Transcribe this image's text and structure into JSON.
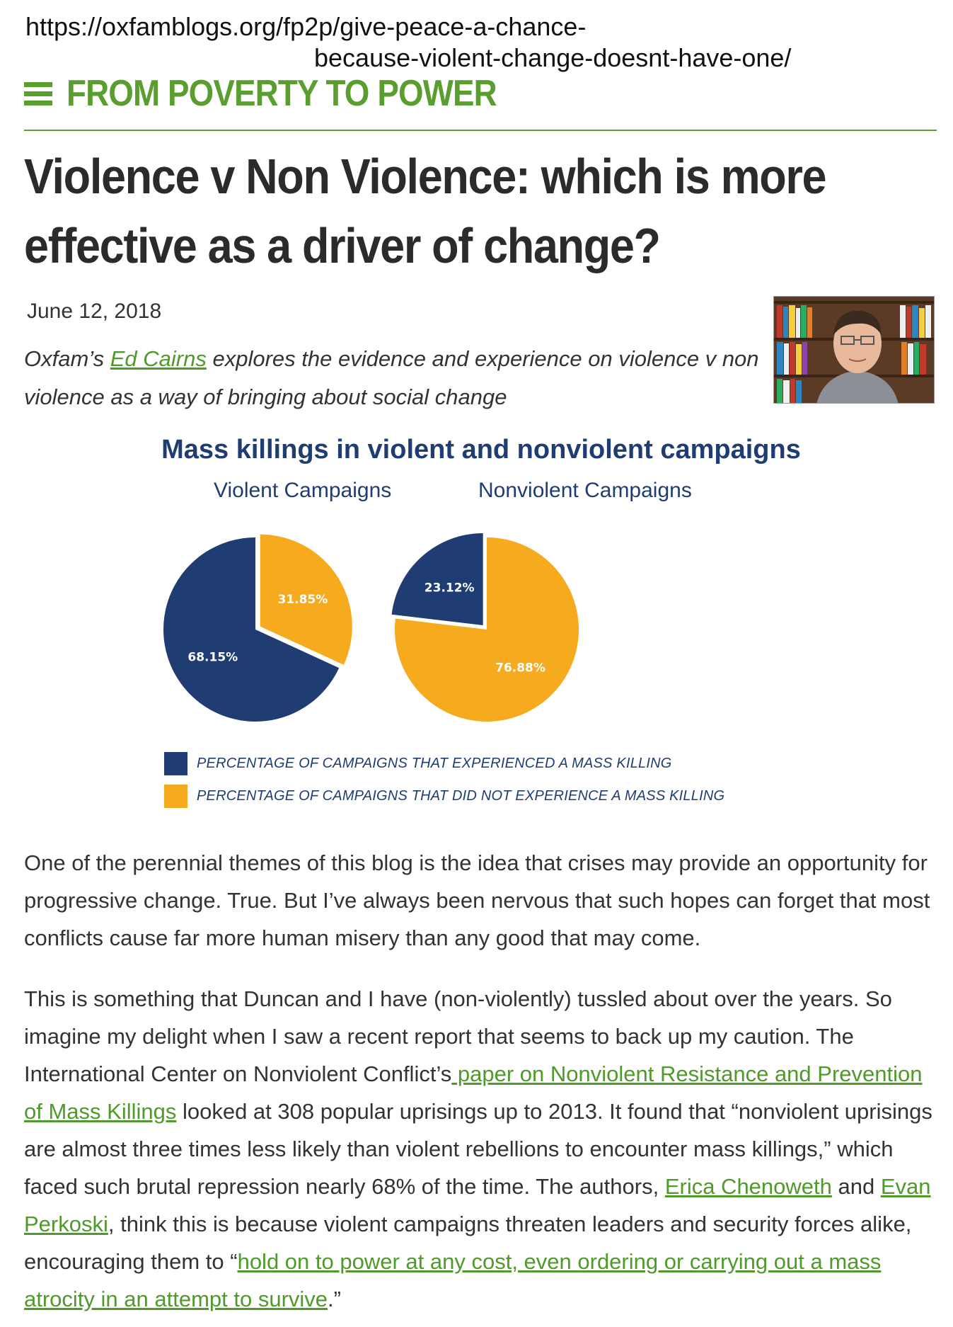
{
  "url": {
    "line1": "https://oxfamblogs.org/fp2p/give-peace-a-chance-",
    "line2": "because-violent-change-doesnt-have-one/"
  },
  "site": {
    "name": "FROM POVERTY TO POWER"
  },
  "article": {
    "title": "Violence v Non Violence: which is more effective as a driver of change?",
    "date": "June 12, 2018",
    "intro": {
      "prefix": "Oxfam’s ",
      "author_link": "Ed Cairns",
      "suffix": " explores the evidence and experience on violence v non violence as a way of bringing about social change"
    },
    "p1": "One of the perennial themes of this blog is the idea that crises may provide an opportunity for progressive change. True. But I’ve always been nervous that such hopes can forget that most conflicts cause far more human misery than any good that may come.",
    "p2": {
      "t1": "This is something that Duncan and I have (non-violently) tussled about over the years. So imagine my delight when I saw a recent report that seems to back up my caution. The International Center on Nonviolent Conflict’s",
      "link1": " paper on Nonviolent Resistance and Prevention of Mass Killings",
      "t2": " looked at 308 popular uprisings up to 2013. It found that “nonviolent uprisings are almost three times less likely than violent rebellions to encounter mass killings,” which faced such brutal repression nearly 68% of the time. The authors, ",
      "link2": "Erica Chenoweth",
      "t3": " and ",
      "link3": "Evan Perkoski",
      "t4": ", think this is because violent campaigns threaten leaders and security forces alike, encouraging them to “",
      "link4": "hold on to power at any cost, even ordering or carrying out a mass atrocity in an attempt to survive",
      "t5": ".”"
    }
  },
  "colors": {
    "brand_green": "#5a9e2f",
    "navy": "#1f3d72",
    "amber": "#f6ab1f"
  },
  "chart_data": {
    "type": "pie",
    "title": "Mass killings in violent and nonviolent campaigns",
    "charts": [
      {
        "name": "Violent Campaigns",
        "slices": [
          {
            "label": "68.15%",
            "value": 68.15,
            "series": 0
          },
          {
            "label": "31.85%",
            "value": 31.85,
            "series": 1
          }
        ]
      },
      {
        "name": "Nonviolent Campaigns",
        "slices": [
          {
            "label": "23.12%",
            "value": 23.12,
            "series": 0
          },
          {
            "label": "76.88%",
            "value": 76.88,
            "series": 1
          }
        ]
      }
    ],
    "legend": [
      {
        "label": "PERCENTAGE OF CAMPAIGNS THAT EXPERIENCED A MASS KILLING",
        "color": "#1f3d72"
      },
      {
        "label": "PERCENTAGE OF CAMPAIGNS THAT DID NOT EXPERIENCE A MASS KILLING",
        "color": "#f6ab1f"
      }
    ]
  }
}
